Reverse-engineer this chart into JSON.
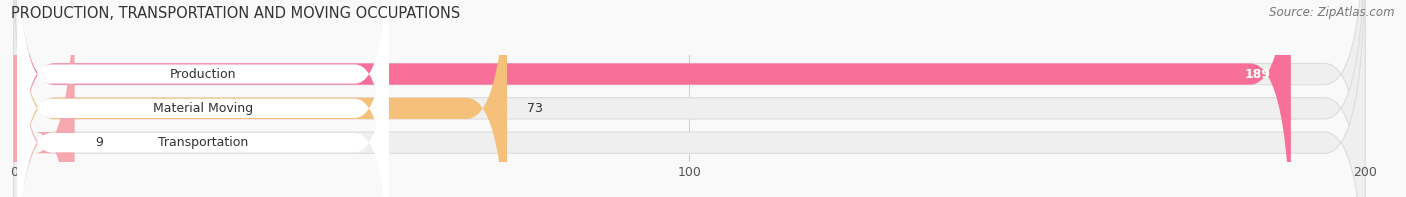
{
  "title": "PRODUCTION, TRANSPORTATION AND MOVING OCCUPATIONS",
  "source": "Source: ZipAtlas.com",
  "categories": [
    "Production",
    "Material Moving",
    "Transportation"
  ],
  "values": [
    189,
    73,
    9
  ],
  "bar_colors": [
    "#F8709A",
    "#F5C07A",
    "#F5A8B0"
  ],
  "bar_bg_color": "#EFEFEF",
  "label_bg_color": "#FFFFFF",
  "xlim": [
    0,
    200
  ],
  "xticks": [
    0,
    100,
    200
  ],
  "title_fontsize": 10.5,
  "label_fontsize": 9,
  "value_fontsize": 9,
  "source_fontsize": 8.5,
  "bar_height": 0.62,
  "figsize": [
    14.06,
    1.97
  ],
  "dpi": 100,
  "grid_color": "#CCCCCC",
  "bg_color": "#F9F9F9"
}
